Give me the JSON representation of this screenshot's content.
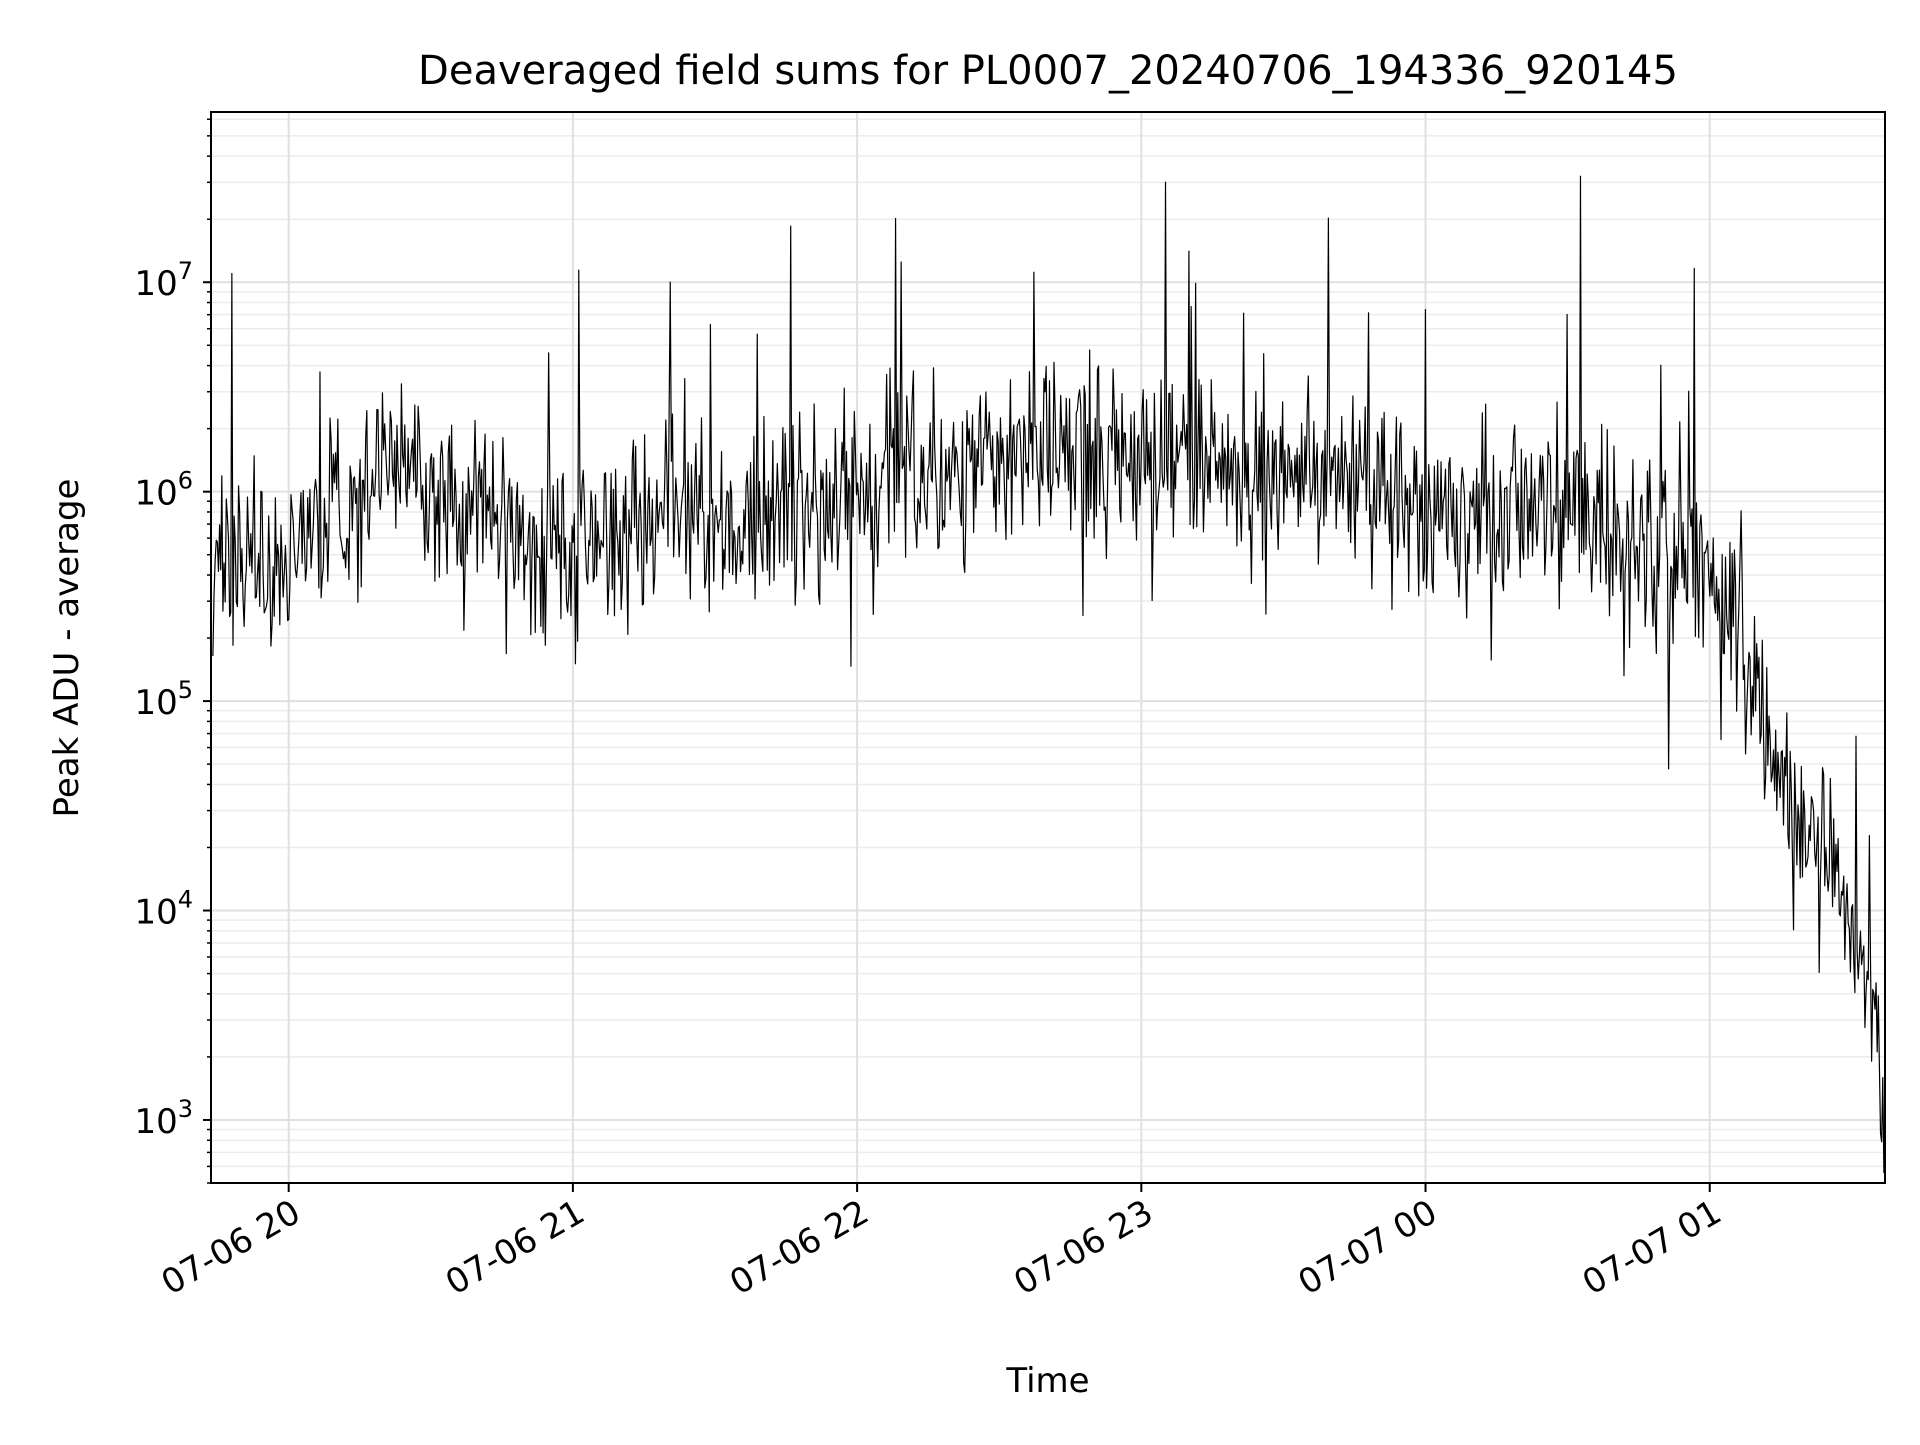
{
  "chart_data": {
    "type": "line",
    "title": "Deaveraged field sums for PL0007_20240706_194336_920145",
    "xlabel": "Time",
    "ylabel": "Peak ADU - average",
    "y_scale": "log",
    "ylim": [
      500,
      65000000
    ],
    "xlim": [
      "2024-07-06 19:43:36",
      "2024-07-07 01:37:00"
    ],
    "grid": "major and minor",
    "legend": "none",
    "line_color": "#000000",
    "x_tick_labels": [
      "07-06 20",
      "07-06 21",
      "07-06 22",
      "07-06 23",
      "07-07 00",
      "07-07 01"
    ],
    "x_ticks": [
      "2024-07-06 20:00",
      "2024-07-06 21:00",
      "2024-07-06 22:00",
      "2024-07-06 23:00",
      "2024-07-07 00:00",
      "2024-07-07 01:00"
    ],
    "y_tick_labels": [
      {
        "base": "10",
        "exp": "3",
        "value": 1000
      },
      {
        "base": "10",
        "exp": "4",
        "value": 10000
      },
      {
        "base": "10",
        "exp": "5",
        "value": 100000
      },
      {
        "base": "10",
        "exp": "6",
        "value": 1000000
      },
      {
        "base": "10",
        "exp": "7",
        "value": 10000000
      }
    ],
    "series": [
      {
        "color": "#000000",
        "x": [
          "2024-07-06 19:44",
          "2024-07-06 19:50",
          "2024-07-06 20:00",
          "2024-07-06 20:10",
          "2024-07-06 20:20",
          "2024-07-06 20:30",
          "2024-07-06 20:40",
          "2024-07-06 20:50",
          "2024-07-06 21:00",
          "2024-07-06 21:10",
          "2024-07-06 21:20",
          "2024-07-06 21:30",
          "2024-07-06 21:40",
          "2024-07-06 21:50",
          "2024-07-06 22:00",
          "2024-07-06 22:10",
          "2024-07-06 22:20",
          "2024-07-06 22:30",
          "2024-07-06 22:40",
          "2024-07-06 22:50",
          "2024-07-06 23:00",
          "2024-07-06 23:10",
          "2024-07-06 23:20",
          "2024-07-06 23:30",
          "2024-07-06 23:40",
          "2024-07-06 23:50",
          "2024-07-07 00:00",
          "2024-07-07 00:10",
          "2024-07-07 00:20",
          "2024-07-07 00:30",
          "2024-07-07 00:40",
          "2024-07-07 00:50",
          "2024-07-07 01:00",
          "2024-07-07 01:05",
          "2024-07-07 01:10",
          "2024-07-07 01:15",
          "2024-07-07 01:20",
          "2024-07-07 01:25",
          "2024-07-07 01:30",
          "2024-07-07 01:35",
          "2024-07-07 01:37"
        ],
        "y": [
          500000,
          500000,
          500000,
          700000,
          1500000,
          1000000,
          800000,
          600000,
          500000,
          600000,
          900000,
          700000,
          700000,
          900000,
          1000000,
          1200000,
          1500000,
          1500000,
          1500000,
          1500000,
          1400000,
          1300000,
          1200000,
          1200000,
          1100000,
          1000000,
          800000,
          800000,
          800000,
          800000,
          700000,
          500000,
          400000,
          250000,
          100000,
          40000,
          25000,
          20000,
          8000,
          4000,
          800
        ]
      }
    ]
  }
}
